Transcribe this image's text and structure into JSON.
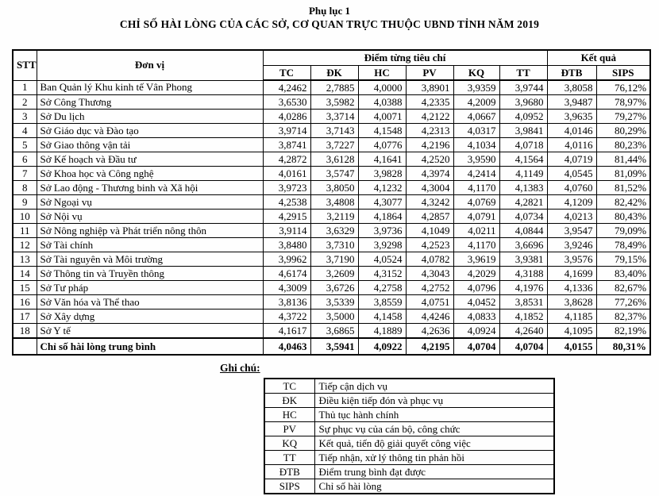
{
  "page": {
    "appendix_label": "Phụ lục 1",
    "title": "CHỈ SỐ HÀI LÒNG CỦA CÁC SỞ, CƠ QUAN TRỰC THUỘC UBND TỈNH NĂM 2019"
  },
  "colors": {
    "text": "#000000",
    "background": "#ffffff",
    "border": "#000000"
  },
  "table": {
    "headers": {
      "stt": "STT",
      "don_vi": "Đơn vị",
      "group_criteria": "Điểm từng tiêu chí",
      "group_result": "Kết quả",
      "criteria": [
        "TC",
        "ĐK",
        "HC",
        "PV",
        "KQ",
        "TT"
      ],
      "result": [
        "ĐTB",
        "SIPS"
      ]
    },
    "rows": [
      {
        "stt": "1",
        "don_vi": "Ban Quản lý Khu kinh tế Vân Phong",
        "tc": "4,2462",
        "dk": "2,7885",
        "hc": "4,0000",
        "pv": "3,8901",
        "kq": "3,9359",
        "tt": "3,9744",
        "dtb": "3,8058",
        "sips": "76,12%"
      },
      {
        "stt": "2",
        "don_vi": "Sở Công Thương",
        "tc": "3,6530",
        "dk": "3,5982",
        "hc": "4,0388",
        "pv": "4,2335",
        "kq": "4,2009",
        "tt": "3,9680",
        "dtb": "3,9487",
        "sips": "78,97%"
      },
      {
        "stt": "3",
        "don_vi": "Sở Du lịch",
        "tc": "4,0286",
        "dk": "3,3714",
        "hc": "4,0071",
        "pv": "4,2122",
        "kq": "4,0667",
        "tt": "4,0952",
        "dtb": "3,9635",
        "sips": "79,27%"
      },
      {
        "stt": "4",
        "don_vi": "Sở Giáo dục và Đào tạo",
        "tc": "3,9714",
        "dk": "3,7143",
        "hc": "4,1548",
        "pv": "4,2313",
        "kq": "4,0317",
        "tt": "3,9841",
        "dtb": "4,0146",
        "sips": "80,29%"
      },
      {
        "stt": "5",
        "don_vi": "Sở Giao thông vận tải",
        "tc": "3,8741",
        "dk": "3,7227",
        "hc": "4,0776",
        "pv": "4,2196",
        "kq": "4,1034",
        "tt": "4,0718",
        "dtb": "4,0116",
        "sips": "80,23%"
      },
      {
        "stt": "6",
        "don_vi": "Sở Kế hoạch và Đầu tư",
        "tc": "4,2872",
        "dk": "3,6128",
        "hc": "4,1641",
        "pv": "4,2520",
        "kq": "3,9590",
        "tt": "4,1564",
        "dtb": "4,0719",
        "sips": "81,44%"
      },
      {
        "stt": "7",
        "don_vi": "Sở Khoa học và Công nghệ",
        "tc": "4,0161",
        "dk": "3,5747",
        "hc": "3,9828",
        "pv": "4,3974",
        "kq": "4,2414",
        "tt": "4,1149",
        "dtb": "4,0545",
        "sips": "81,09%"
      },
      {
        "stt": "8",
        "don_vi": "Sở Lao động - Thương binh và Xã hội",
        "tc": "3,9723",
        "dk": "3,8050",
        "hc": "4,1232",
        "pv": "4,3004",
        "kq": "4,1170",
        "tt": "4,1383",
        "dtb": "4,0760",
        "sips": "81,52%"
      },
      {
        "stt": "9",
        "don_vi": "Sở Ngoại vụ",
        "tc": "4,2538",
        "dk": "3,4808",
        "hc": "4,3077",
        "pv": "4,3242",
        "kq": "4,0769",
        "tt": "4,2821",
        "dtb": "4,1209",
        "sips": "82,42%"
      },
      {
        "stt": "10",
        "don_vi": "Sở Nội vụ",
        "tc": "4,2915",
        "dk": "3,2119",
        "hc": "4,1864",
        "pv": "4,2857",
        "kq": "4,0791",
        "tt": "4,0734",
        "dtb": "4,0213",
        "sips": "80,43%"
      },
      {
        "stt": "11",
        "don_vi": "Sở Nông nghiệp và Phát triển nông thôn",
        "tc": "3,9114",
        "dk": "3,6329",
        "hc": "3,9736",
        "pv": "4,1049",
        "kq": "4,0211",
        "tt": "4,0844",
        "dtb": "3,9547",
        "sips": "79,09%"
      },
      {
        "stt": "12",
        "don_vi": "Sở Tài chính",
        "tc": "3,8480",
        "dk": "3,7310",
        "hc": "3,9298",
        "pv": "4,2523",
        "kq": "4,1170",
        "tt": "3,6696",
        "dtb": "3,9246",
        "sips": "78,49%"
      },
      {
        "stt": "13",
        "don_vi": "Sở Tài nguyên và Môi trường",
        "tc": "3,9962",
        "dk": "3,7190",
        "hc": "4,0524",
        "pv": "4,0782",
        "kq": "3,9619",
        "tt": "3,9381",
        "dtb": "3,9576",
        "sips": "79,15%"
      },
      {
        "stt": "14",
        "don_vi": "Sở Thông tin và Truyền thông",
        "tc": "4,6174",
        "dk": "3,2609",
        "hc": "4,3152",
        "pv": "4,3043",
        "kq": "4,2029",
        "tt": "4,3188",
        "dtb": "4,1699",
        "sips": "83,40%"
      },
      {
        "stt": "15",
        "don_vi": "Sở Tư pháp",
        "tc": "4,3009",
        "dk": "3,6726",
        "hc": "4,2758",
        "pv": "4,2752",
        "kq": "4,0796",
        "tt": "4,1976",
        "dtb": "4,1336",
        "sips": "82,67%"
      },
      {
        "stt": "16",
        "don_vi": "Sở Văn hóa và Thể thao",
        "tc": "3,8136",
        "dk": "3,5339",
        "hc": "3,8559",
        "pv": "4,0751",
        "kq": "4,0452",
        "tt": "3,8531",
        "dtb": "3,8628",
        "sips": "77,26%"
      },
      {
        "stt": "17",
        "don_vi": "Sở Xây dựng",
        "tc": "4,3722",
        "dk": "3,5000",
        "hc": "4,1458",
        "pv": "4,4246",
        "kq": "4,0833",
        "tt": "4,1852",
        "dtb": "4,1185",
        "sips": "82,37%"
      },
      {
        "stt": "18",
        "don_vi": "Sở Y tế",
        "tc": "4,1617",
        "dk": "3,6865",
        "hc": "4,1889",
        "pv": "4,2636",
        "kq": "4,0924",
        "tt": "4,2640",
        "dtb": "4,1095",
        "sips": "82,19%"
      }
    ],
    "summary": {
      "label": "Chỉ số hài lòng trung bình",
      "tc": "4,0463",
      "dk": "3,5941",
      "hc": "4,0922",
      "pv": "4,2195",
      "kq": "4,0704",
      "tt": "4,0704",
      "dtb": "4,0155",
      "sips": "80,31%"
    }
  },
  "legend": {
    "label": "Ghi chú:",
    "items": [
      {
        "abbr": "TC",
        "desc": "Tiếp cận dịch vụ"
      },
      {
        "abbr": "ĐK",
        "desc": "Điều kiện tiếp đón và phục vụ"
      },
      {
        "abbr": "HC",
        "desc": "Thủ tục hành chính"
      },
      {
        "abbr": "PV",
        "desc": "Sự phục vụ của cán bộ, công chức"
      },
      {
        "abbr": "KQ",
        "desc": "Kết quả, tiến độ giải quyết công việc"
      },
      {
        "abbr": "TT",
        "desc": "Tiếp nhận, xử lý thông tin phản hồi"
      },
      {
        "abbr": "ĐTB",
        "desc": "Điểm trung bình đạt được"
      },
      {
        "abbr": "SIPS",
        "desc": "Chỉ số hài lòng"
      }
    ]
  }
}
